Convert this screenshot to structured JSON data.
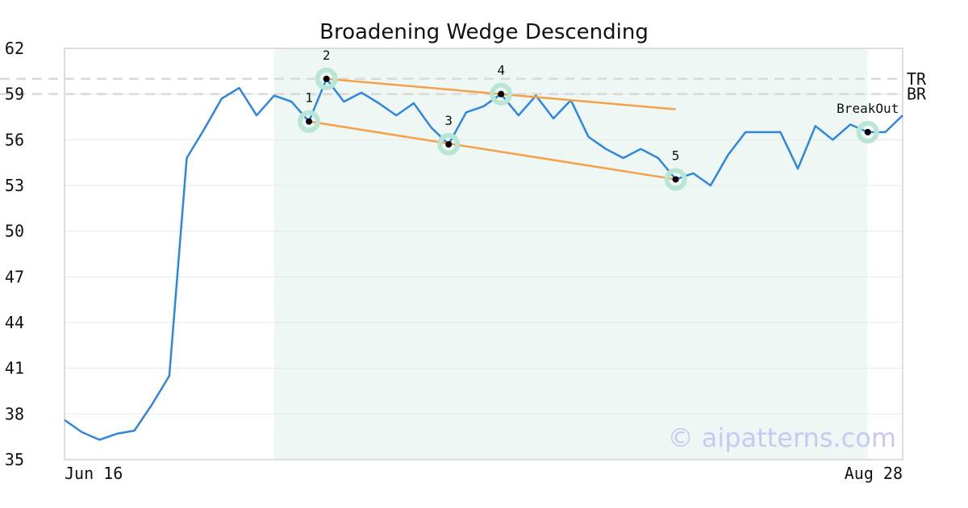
{
  "chart_data": {
    "type": "line",
    "title": "Broadening Wedge Descending",
    "xlabel": "",
    "ylabel": "",
    "ylim": [
      35,
      62
    ],
    "yticks": [
      35,
      38,
      41,
      44,
      47,
      50,
      53,
      56,
      59,
      62
    ],
    "x_tick_labels": [
      "Jun 16",
      "Aug 28"
    ],
    "grid": true,
    "colors": {
      "price": "#2e86de",
      "trendline": "#f5a04a",
      "highlight": "#eef7f3",
      "marker_ring": "#b9e6d4",
      "level": "#d9d9d9",
      "border": "#dddddd"
    },
    "pattern_range": [
      12,
      46
    ],
    "series": [
      {
        "values": [
          37.6,
          36.8,
          36.3,
          36.7,
          36.9,
          38.6,
          40.5,
          54.8,
          56.7,
          58.7,
          59.4,
          57.6,
          58.9,
          58.5,
          57.2,
          60.0,
          58.5,
          59.1,
          58.4,
          57.6,
          58.4,
          56.8,
          55.7,
          57.8,
          58.2,
          59.0,
          57.6,
          58.9,
          57.4,
          58.6,
          56.2,
          55.4,
          54.8,
          55.4,
          54.8,
          53.4,
          53.8,
          53.0,
          55.0,
          56.5,
          56.5,
          56.5,
          54.1,
          56.9,
          56.0,
          57.0,
          56.5,
          56.5,
          57.6
        ]
      }
    ],
    "levels": [
      {
        "label": "TR",
        "value": 60.0
      },
      {
        "label": "BR",
        "value": 59.0
      }
    ],
    "pattern_points": [
      {
        "label": "1",
        "index": 14,
        "value": 57.2
      },
      {
        "label": "2",
        "index": 15,
        "value": 60.0
      },
      {
        "label": "3",
        "index": 22,
        "value": 55.7
      },
      {
        "label": "4",
        "index": 25,
        "value": 59.0
      },
      {
        "label": "5",
        "index": 35,
        "value": 53.4
      }
    ],
    "breakout": {
      "label": "BreakOut",
      "index": 46,
      "value": 56.5
    },
    "trendlines": [
      {
        "from": {
          "index": 15,
          "value": 60.0
        },
        "to": {
          "index": 35,
          "value": 58.0
        }
      },
      {
        "from": {
          "index": 14,
          "value": 57.2
        },
        "to": {
          "index": 35,
          "value": 53.4
        }
      }
    ],
    "watermark": "© aipatterns.com"
  }
}
